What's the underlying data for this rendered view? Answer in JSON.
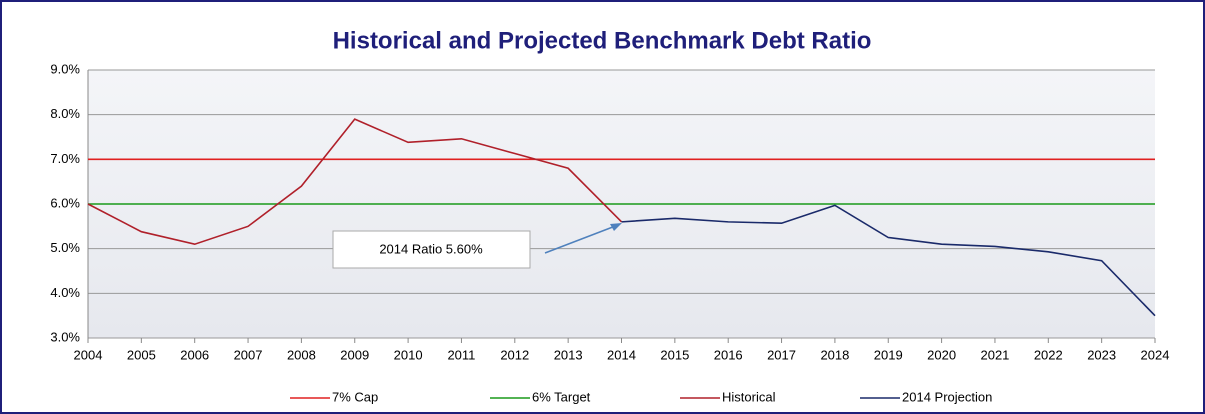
{
  "chart_data": {
    "type": "line",
    "title": "Historical and Projected Benchmark Debt Ratio",
    "categories": [
      "2004",
      "2005",
      "2006",
      "2007",
      "2008",
      "2009",
      "2010",
      "2011",
      "2012",
      "2013",
      "2014",
      "2015",
      "2016",
      "2017",
      "2018",
      "2019",
      "2020",
      "2021",
      "2022",
      "2023",
      "2024"
    ],
    "series": [
      {
        "name": "7% Cap",
        "color": "#e02020",
        "values": [
          7,
          7,
          7,
          7,
          7,
          7,
          7,
          7,
          7,
          7,
          7,
          7,
          7,
          7,
          7,
          7,
          7,
          7,
          7,
          7,
          7
        ]
      },
      {
        "name": "6% Target",
        "color": "#1a9a1a",
        "values": [
          6,
          6,
          6,
          6,
          6,
          6,
          6,
          6,
          6,
          6,
          6,
          6,
          6,
          6,
          6,
          6,
          6,
          6,
          6,
          6,
          6
        ]
      },
      {
        "name": "Historical",
        "color": "#b0202a",
        "values": [
          6.0,
          5.38,
          5.1,
          5.5,
          6.4,
          7.9,
          7.38,
          7.46,
          7.13,
          6.8,
          5.6,
          null,
          null,
          null,
          null,
          null,
          null,
          null,
          null,
          null,
          null
        ]
      },
      {
        "name": "2014 Projection",
        "color": "#1a2a6a",
        "values": [
          null,
          null,
          null,
          null,
          null,
          null,
          null,
          null,
          null,
          null,
          5.6,
          5.68,
          5.6,
          5.57,
          5.97,
          5.25,
          5.1,
          5.05,
          4.93,
          4.73,
          3.5
        ]
      }
    ],
    "ylim": [
      3,
      9
    ],
    "yticks": [
      {
        "value": 3,
        "label": "3.0%"
      },
      {
        "value": 4,
        "label": "4.0%"
      },
      {
        "value": 5,
        "label": "5.0%"
      },
      {
        "value": 6,
        "label": "6.0%"
      },
      {
        "value": 7,
        "label": "7.0%"
      },
      {
        "value": 8,
        "label": "8.0%"
      },
      {
        "value": 9,
        "label": "9.0%"
      }
    ],
    "grid": true,
    "annotation": "2014 Ratio 5.60%",
    "legend": "bottom"
  }
}
